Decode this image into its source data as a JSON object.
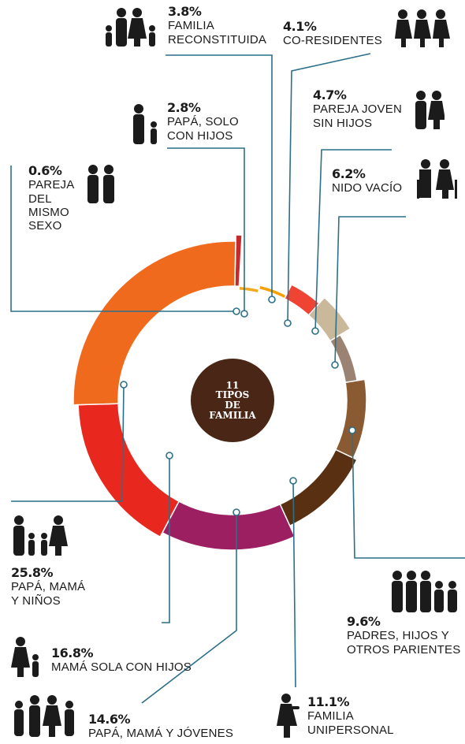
{
  "center": {
    "line1": "11",
    "line2": "TIPOS",
    "line3": "DE",
    "line4": "FAMILIA"
  },
  "chart_data": {
    "type": "pie",
    "title": "11 TIPOS DE FAMILIA",
    "slices": [
      {
        "label": "PAREJA DEL MISMO SEXO",
        "value": 0.6,
        "color": "#c62b2b"
      },
      {
        "label": "PAPÁ, SOLO CON HIJOS",
        "value": 2.8,
        "color": "#f2a81f"
      },
      {
        "label": "FAMILIA RECONSTITUIDA",
        "value": 3.8,
        "color": "#f7a000"
      },
      {
        "label": "CO-RESIDENTES",
        "value": 4.1,
        "color": "#ef4433"
      },
      {
        "label": "PAREJA JOVEN SIN HIJOS",
        "value": 4.7,
        "color": "#c9b89a"
      },
      {
        "label": "NIDO VACÍO",
        "value": 6.2,
        "color": "#9a8372"
      },
      {
        "label": "PADRES, HIJOS Y OTROS PARIENTES",
        "value": 9.6,
        "color": "#8a5a32"
      },
      {
        "label": "FAMILIA UNIPERSONAL",
        "value": 11.1,
        "color": "#5a3012"
      },
      {
        "label": "PAPÁ, MAMÁ Y JÓVENES",
        "value": 14.6,
        "color": "#9c1f62"
      },
      {
        "label": "MAMÁ SOLA CON HIJOS",
        "value": 16.8,
        "color": "#e8281e"
      },
      {
        "label": "PAPÁ, MAMÁ Y NIÑOS",
        "value": 25.8,
        "color": "#f06a1d"
      }
    ]
  },
  "labels": {
    "reconstituida": {
      "pct": "3.8%",
      "l1": "FAMILIA",
      "l2": "RECONSTITUIDA"
    },
    "coresidentes": {
      "pct": "4.1%",
      "l1": "CO-RESIDENTES"
    },
    "papa_solo": {
      "pct": "2.8%",
      "l1": "PAPÁ, SOLO",
      "l2": "CON HIJOS"
    },
    "pareja_joven": {
      "pct": "4.7%",
      "l1": "PAREJA JOVEN",
      "l2": "SIN HIJOS"
    },
    "mismo_sexo": {
      "pct": "0.6%",
      "l1": "PAREJA",
      "l2": "DEL",
      "l3": "MISMO",
      "l4": "SEXO"
    },
    "nido": {
      "pct": "6.2%",
      "l1": "NIDO VACÍO"
    },
    "ninos": {
      "pct": "25.8%",
      "l1": "PAPÁ, MAMÁ",
      "l2": "Y NIÑOS"
    },
    "otros": {
      "pct": "9.6%",
      "l1": "PADRES, HIJOS Y",
      "l2": "OTROS PARIENTES"
    },
    "mama_sola": {
      "pct": "16.8%",
      "l1": "MAMÁ SOLA CON HIJOS"
    },
    "jovenes": {
      "pct": "14.6%",
      "l1": "PAPÁ, MAMÁ Y JÓVENES"
    },
    "unipersonal": {
      "pct": "11.1%",
      "l1": "FAMILIA",
      "l2": "UNIPERSONAL"
    }
  },
  "icons": {
    "reconstituida": "family-four-icon",
    "coresidentes": "three-people-icon",
    "papa_solo": "father-child-icon",
    "pareja_joven": "couple-icon",
    "mismo_sexo": "couple-icon",
    "nido": "elderly-couple-icon",
    "ninos": "family-with-kids-icon",
    "otros": "extended-family-icon",
    "mama_sola": "mother-child-icon",
    "jovenes": "family-teens-icon",
    "unipersonal": "single-woman-icon"
  }
}
